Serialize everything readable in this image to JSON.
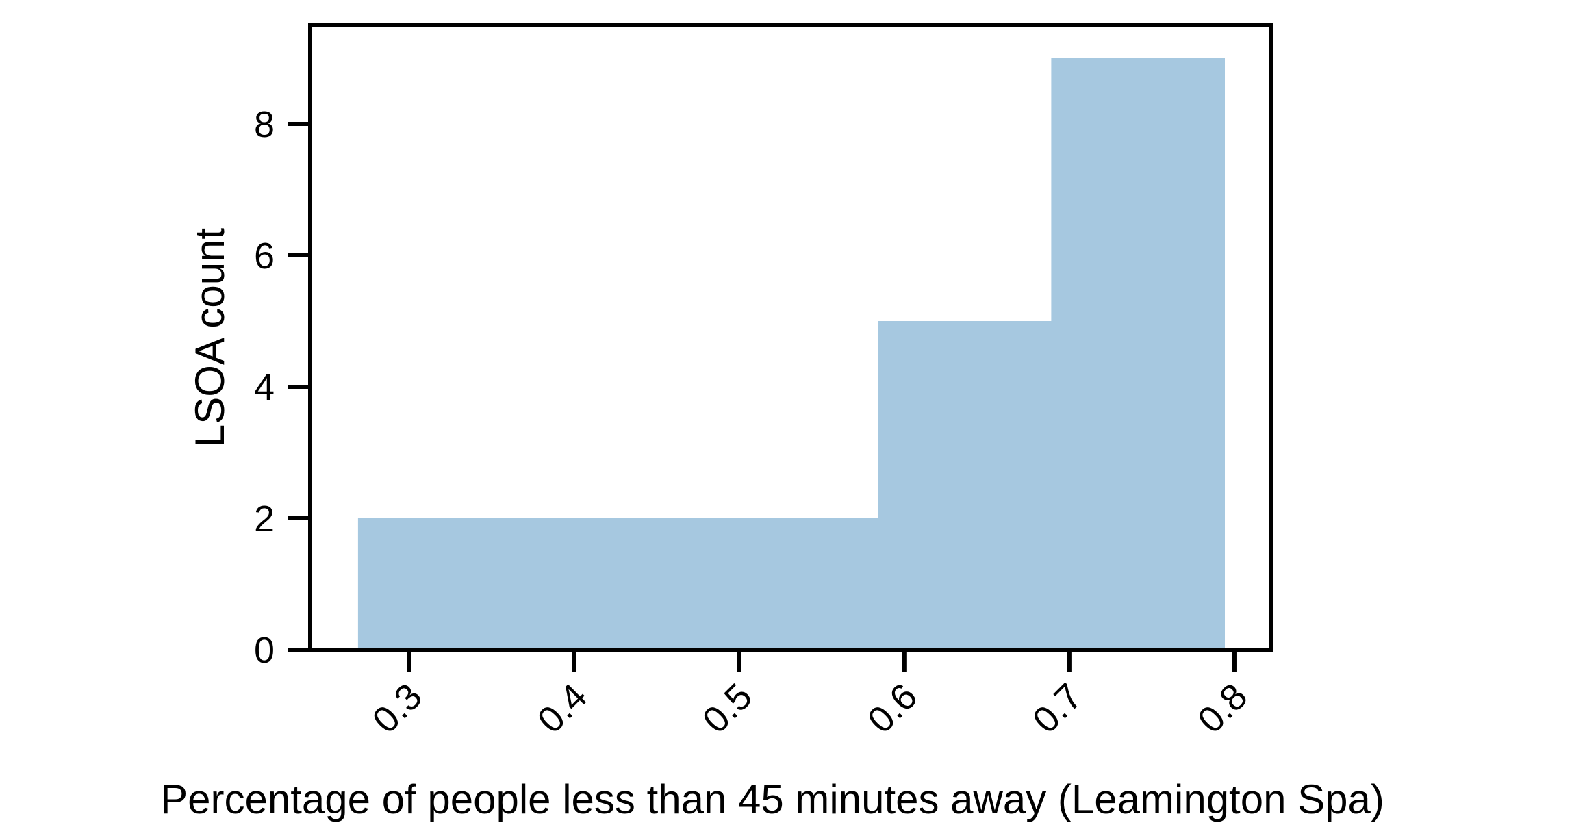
{
  "chart_data": {
    "type": "bar",
    "subtype": "histogram",
    "xlabel": "Percentage of people less than 45 minutes away (Leamington Spa)",
    "ylabel": "LSOA count",
    "bins": [
      {
        "x0": 0.269,
        "x1": 0.584,
        "count": 2
      },
      {
        "x0": 0.584,
        "x1": 0.689,
        "count": 5
      },
      {
        "x0": 0.689,
        "x1": 0.794,
        "count": 9
      }
    ],
    "xlim": [
      0.24,
      0.822
    ],
    "ylim": [
      0,
      9.5
    ],
    "xticks": [
      "0.3",
      "0.4",
      "0.5",
      "0.6",
      "0.7",
      "0.8"
    ],
    "yticks": [
      "0",
      "2",
      "4",
      "6",
      "8"
    ],
    "bar_color": "#a6c8e0",
    "grid": false
  }
}
